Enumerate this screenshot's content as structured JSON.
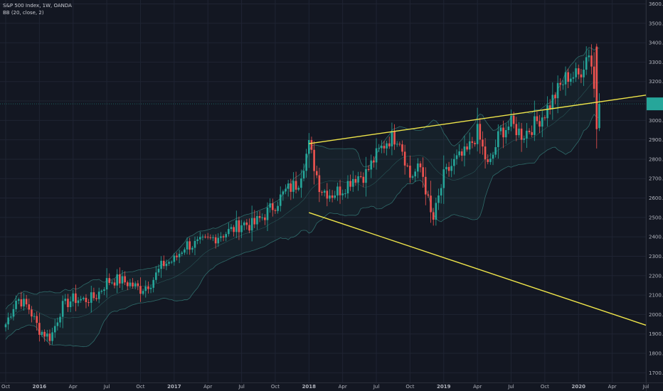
{
  "header": {
    "symbol": "S&P 500 Index, 1W, OANDA",
    "indicator": "BB (20, close, 2)"
  },
  "colors": {
    "background": "#131722",
    "up": "#26a69a",
    "down": "#ef5350",
    "trendline": "#f0e64a",
    "band": "#2f6b6a",
    "grid": "#1f2433",
    "axis_text": "#b2b5be"
  },
  "chart_data": {
    "type": "candlestick",
    "x_labels": [
      "Oct",
      "2016",
      "Apr",
      "Jul",
      "Oct",
      "2017",
      "Apr",
      "Jul",
      "Oct",
      "2018",
      "Apr",
      "Jul",
      "Oct",
      "2019",
      "Apr",
      "Jul",
      "Oct",
      "2020",
      "Apr",
      "Jul"
    ],
    "y_ticks": [
      1700,
      1800,
      1900,
      2000,
      2100,
      2200,
      2300,
      2400,
      2500,
      2600,
      2700,
      2800,
      2900,
      3000,
      3100,
      3200,
      3300,
      3400,
      3500,
      3600
    ],
    "y_range": [
      1650,
      3620
    ],
    "x_range": [
      "2015-10",
      "2020-07"
    ],
    "grid": true,
    "current_price_marker": 3085,
    "trendlines": [
      {
        "from": [
          "2018-01",
          2880
        ],
        "to": [
          "2020-07",
          3130
        ]
      },
      {
        "from": [
          "2018-01",
          2525
        ],
        "to": [
          "2020-07",
          1945
        ]
      }
    ],
    "close_path": [
      [
        "2015-10",
        1950
      ],
      [
        "2015-11",
        2085
      ],
      [
        "2015-12",
        2040
      ],
      [
        "2016-01",
        1920
      ],
      [
        "2016-02",
        1880
      ],
      [
        "2016-03",
        2040
      ],
      [
        "2016-04",
        2080
      ],
      [
        "2016-05",
        2075
      ],
      [
        "2016-06",
        2090
      ],
      [
        "2016-07",
        2170
      ],
      [
        "2016-08",
        2180
      ],
      [
        "2016-09",
        2160
      ],
      [
        "2016-10",
        2130
      ],
      [
        "2016-11",
        2170
      ],
      [
        "2016-12",
        2260
      ],
      [
        "2017-01",
        2280
      ],
      [
        "2017-02",
        2360
      ],
      [
        "2017-03",
        2360
      ],
      [
        "2017-04",
        2380
      ],
      [
        "2017-05",
        2410
      ],
      [
        "2017-06",
        2430
      ],
      [
        "2017-07",
        2470
      ],
      [
        "2017-08",
        2460
      ],
      [
        "2017-09",
        2510
      ],
      [
        "2017-10",
        2570
      ],
      [
        "2017-11",
        2640
      ],
      [
        "2017-12",
        2675
      ],
      [
        "2018-01",
        2870
      ],
      [
        "2018-02",
        2650
      ],
      [
        "2018-03",
        2620
      ],
      [
        "2018-04",
        2650
      ],
      [
        "2018-05",
        2710
      ],
      [
        "2018-06",
        2720
      ],
      [
        "2018-07",
        2820
      ],
      [
        "2018-08",
        2900
      ],
      [
        "2018-09",
        2920
      ],
      [
        "2018-10",
        2710
      ],
      [
        "2018-11",
        2760
      ],
      [
        "2018-12",
        2470
      ],
      [
        "2019-01",
        2710
      ],
      [
        "2019-02",
        2790
      ],
      [
        "2019-03",
        2830
      ],
      [
        "2019-04",
        2940
      ],
      [
        "2019-05",
        2750
      ],
      [
        "2019-06",
        2940
      ],
      [
        "2019-07",
        2980
      ],
      [
        "2019-08",
        2925
      ],
      [
        "2019-09",
        2975
      ],
      [
        "2019-10",
        3040
      ],
      [
        "2019-11",
        3140
      ],
      [
        "2019-12",
        3230
      ],
      [
        "2020-01",
        3230
      ],
      [
        "2020-02",
        3370
      ],
      [
        "2020-02-24",
        2955
      ],
      [
        "2020-03",
        3085
      ]
    ],
    "series": [
      {
        "values": "weekly OHLC candles traced along close_path"
      }
    ]
  }
}
